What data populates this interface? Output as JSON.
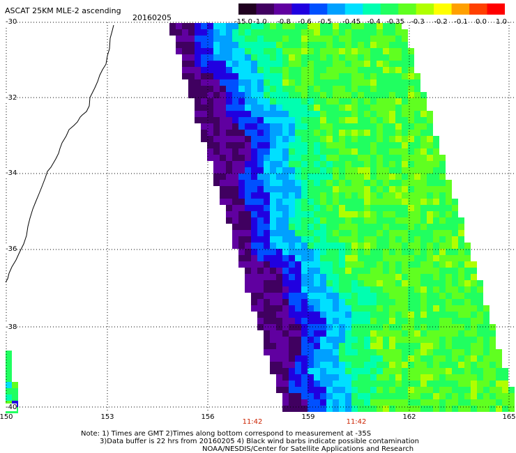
{
  "header": {
    "title": "ASCAT 25KM MLE-2 ascending",
    "date": "20160205"
  },
  "colorbar": {
    "labels": [
      "-15.0",
      "-1.0",
      "-0.8",
      "-0.6",
      "-0.5",
      "-0.45",
      "-0.4",
      "-0.35",
      "-0.3",
      "-0.2",
      "-0.1",
      "0.0",
      "1.0"
    ],
    "colors": [
      "#200020",
      "#400060",
      "#6000a0",
      "#2000e0",
      "#0050ff",
      "#00a0ff",
      "#00e0ff",
      "#00ffb0",
      "#20ff60",
      "#60ff20",
      "#b0ff00",
      "#ffff00",
      "#ffa000",
      "#ff4000",
      "#ff0000"
    ]
  },
  "axes": {
    "lat_labels": [
      "-30",
      "-32",
      "-34",
      "-36",
      "-38",
      "-40"
    ],
    "lon_labels": [
      "150",
      "153",
      "156",
      "159",
      "162",
      "165"
    ],
    "time_labels": [
      "11:42",
      "11:42"
    ]
  },
  "notes": {
    "line1": "Note: 1) Times are GMT 2)Times along bottom correspond to measurement at -35S",
    "line2": "3)Data buffer is 22 hrs from 20160205 4) Black wind barbs indicate possible contamination",
    "line3": "NOAA/NESDIS/Center for Satellite Applications and Research"
  }
}
